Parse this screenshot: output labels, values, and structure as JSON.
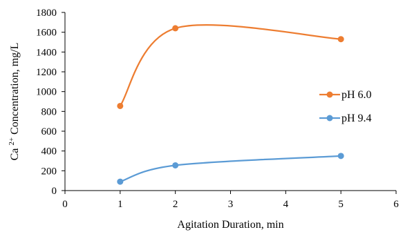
{
  "chart_data": {
    "type": "line",
    "smoothed": true,
    "xlabel": "Agitation Duration, min",
    "ylabel_prefix": "Ca ",
    "ylabel_sup": "2+",
    "ylabel_suffix": " Concentration, mg/L",
    "xlim": [
      0,
      6
    ],
    "ylim": [
      0,
      1800
    ],
    "xticks": [
      0,
      1,
      2,
      3,
      4,
      5,
      6
    ],
    "yticks": [
      0,
      200,
      400,
      600,
      800,
      1000,
      1200,
      1400,
      1600,
      1800
    ],
    "grid": false,
    "legend_position": "right",
    "series": [
      {
        "name": "pH 6.0",
        "color": "#ED7D31",
        "x": [
          1,
          2,
          5
        ],
        "y": [
          855,
          1640,
          1530
        ]
      },
      {
        "name": "pH 9.4",
        "color": "#5B9BD5",
        "x": [
          1,
          2,
          5
        ],
        "y": [
          90,
          255,
          350
        ]
      }
    ]
  }
}
